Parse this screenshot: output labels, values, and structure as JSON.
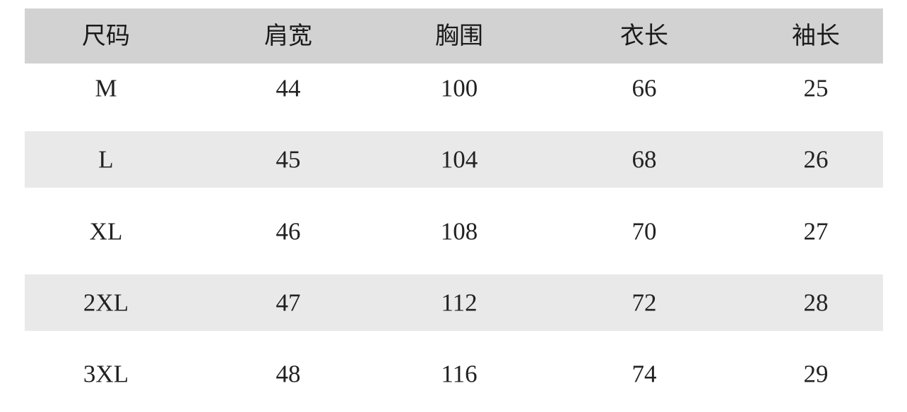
{
  "table": {
    "header": [
      "尺码",
      "肩宽",
      "胸围",
      "衣长",
      "袖长"
    ],
    "rows": [
      [
        "M",
        44,
        100,
        66,
        25
      ],
      [
        "L",
        45,
        104,
        68,
        26
      ],
      [
        "XL",
        46,
        108,
        70,
        27
      ],
      [
        "2XL",
        47,
        112,
        72,
        28
      ],
      [
        "3XL",
        48,
        116,
        74,
        29
      ]
    ]
  }
}
